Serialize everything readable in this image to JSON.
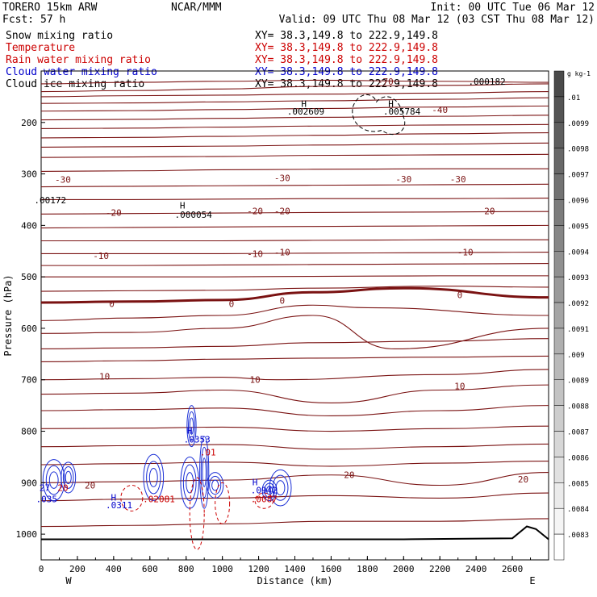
{
  "header": {
    "model": "TORERO  15km ARW",
    "center": "NCAR/MMM",
    "init": "Init: 00 UTC Tue 06 Mar 12",
    "fcst_label": "Fcst:",
    "fcst_value": "57 h",
    "valid": "Valid: 09 UTC Thu 08 Mar 12 (03 CST Thu 08 Mar 12)"
  },
  "fields": [
    {
      "name": "Snow mixing ratio",
      "xy": "XY=  38.3,149.8 to 222.9,149.8",
      "color": "#000000",
      "xycolor": "#000000"
    },
    {
      "name": "Temperature",
      "xy": "XY=  38.3,149.8 to 222.9,149.8",
      "color": "#cc0000",
      "xycolor": "#cc0000"
    },
    {
      "name": "Rain water mixing ratio",
      "xy": "XY=  38.3,149.8 to 222.9,149.8",
      "color": "#cc0000",
      "xycolor": "#cc0000"
    },
    {
      "name": "Cloud water mixing ratio",
      "xy": "XY=  38.3,149.8 to 222.9,149.8",
      "color": "#0000cc",
      "xycolor": "#0000cc"
    },
    {
      "name": "Cloud ice mixing ratio",
      "xy": "XY=  38.3,149.8 to 222.9,149.8",
      "color": "#000000",
      "xycolor": "#000000"
    }
  ],
  "chart_data": {
    "type": "contour",
    "xlabel": "Distance (km)",
    "ylabel": "Pressure (hPa)",
    "xlim": [
      0,
      2800
    ],
    "ylim": [
      1050,
      100
    ],
    "xticks": [
      0,
      200,
      400,
      600,
      800,
      1000,
      1200,
      1400,
      1600,
      1800,
      2000,
      2200,
      2400,
      2600
    ],
    "yticks": [
      200,
      300,
      400,
      500,
      600,
      700,
      800,
      900,
      1000
    ],
    "x_end_labels": {
      "left": "W",
      "right": "E"
    },
    "colorbar": {
      "unit": "g kg-1",
      "labels": [
        ".01",
        ".0099",
        ".0098",
        ".0097",
        ".0096",
        ".0095",
        ".0094",
        ".0093",
        ".0092",
        ".0091",
        ".009",
        ".0089",
        ".0088",
        ".0087",
        ".0086",
        ".0085",
        ".0084",
        ".0083"
      ],
      "top_color": "#4a4a4a",
      "bottom_color": "#ffffff"
    },
    "temperature_isotherms": [
      {
        "p": [
          125,
          122,
          120,
          118,
          120,
          122
        ],
        "x": [
          0,
          500,
          1000,
          1500,
          2200,
          2800
        ]
      },
      {
        "p": [
          140,
          138,
          135,
          130,
          128,
          125
        ],
        "x": [
          0,
          500,
          1000,
          1500,
          2200,
          2800
        ]
      },
      {
        "p": [
          150,
          148,
          147,
          145,
          143,
          140
        ],
        "x": [
          0,
          500,
          1000,
          1500,
          2200,
          2800
        ]
      },
      {
        "p": [
          163,
          162,
          160,
          158,
          155,
          152
        ],
        "x": [
          0,
          500,
          1000,
          1500,
          2200,
          2800
        ]
      },
      {
        "p": [
          178,
          177,
          175,
          173,
          170,
          168
        ],
        "x": [
          0,
          500,
          1000,
          1500,
          2200,
          2800
        ]
      },
      {
        "p": [
          195,
          194,
          192,
          190,
          188,
          186
        ],
        "x": [
          0,
          500,
          1000,
          1500,
          2200,
          2800
        ]
      },
      {
        "p": [
          212,
          211,
          209,
          207,
          205,
          204
        ],
        "x": [
          0,
          500,
          1000,
          1500,
          2200,
          2800
        ]
      },
      {
        "p": [
          230,
          229,
          227,
          225,
          222,
          220
        ],
        "x": [
          0,
          500,
          1000,
          1500,
          2200,
          2800
        ]
      },
      {
        "p": [
          248,
          247,
          246,
          244,
          242,
          240
        ],
        "x": [
          0,
          500,
          1000,
          1500,
          2200,
          2800
        ]
      },
      {
        "p": [
          268,
          267,
          266,
          264,
          263,
          262
        ],
        "x": [
          0,
          500,
          1000,
          1500,
          2200,
          2800
        ]
      },
      {
        "p": [
          295,
          294,
          292,
          291,
          290,
          290
        ],
        "x": [
          0,
          500,
          1000,
          1500,
          2200,
          2800
        ]
      },
      {
        "p": [
          325,
          324,
          323,
          322,
          321,
          320
        ],
        "x": [
          0,
          500,
          1000,
          1500,
          2200,
          2800
        ]
      },
      {
        "p": [
          350,
          350,
          349,
          348,
          348,
          347
        ],
        "x": [
          0,
          500,
          1000,
          1500,
          2200,
          2800
        ]
      },
      {
        "p": [
          378,
          377,
          376,
          375,
          374,
          373
        ],
        "x": [
          0,
          500,
          1000,
          1500,
          2200,
          2800
        ]
      },
      {
        "p": [
          405,
          404,
          403,
          402,
          401,
          400
        ],
        "x": [
          0,
          500,
          1000,
          1500,
          2200,
          2800
        ]
      },
      {
        "p": [
          430,
          430,
          430,
          429,
          428,
          428
        ],
        "x": [
          0,
          500,
          1000,
          1500,
          2200,
          2800
        ]
      },
      {
        "p": [
          455,
          455,
          455,
          454,
          453,
          452
        ],
        "x": [
          0,
          500,
          1000,
          1500,
          2200,
          2800
        ]
      },
      {
        "p": [
          478,
          478,
          477,
          476,
          475,
          474
        ],
        "x": [
          0,
          500,
          1000,
          1500,
          2200,
          2800
        ]
      },
      {
        "p": [
          500,
          500,
          500,
          499,
          498,
          498
        ],
        "x": [
          0,
          500,
          1000,
          1500,
          2200,
          2800
        ]
      },
      {
        "p": [
          528,
          527,
          526,
          522,
          518,
          520
        ],
        "x": [
          0,
          500,
          1000,
          1500,
          2200,
          2800
        ]
      },
      {
        "p": [
          550,
          548,
          545,
          530,
          522,
          540
        ],
        "x": [
          0,
          500,
          1000,
          1500,
          2000,
          2800
        ],
        "bold": true
      },
      {
        "p": [
          585,
          580,
          575,
          555,
          560,
          575
        ],
        "x": [
          0,
          500,
          1000,
          1500,
          1800,
          2800
        ]
      },
      {
        "p": [
          610,
          608,
          600,
          575,
          640,
          600
        ],
        "x": [
          0,
          500,
          1000,
          1500,
          1950,
          2800
        ]
      },
      {
        "p": [
          640,
          638,
          635,
          628,
          625,
          620
        ],
        "x": [
          0,
          500,
          1000,
          1500,
          2200,
          2800
        ]
      },
      {
        "p": [
          665,
          663,
          660,
          658,
          656,
          654
        ],
        "x": [
          0,
          500,
          1000,
          1500,
          2200,
          2800
        ]
      },
      {
        "p": [
          700,
          698,
          695,
          700,
          690,
          680
        ],
        "x": [
          0,
          500,
          1000,
          1300,
          2200,
          2800
        ]
      },
      {
        "p": [
          728,
          726,
          720,
          745,
          720,
          710
        ],
        "x": [
          0,
          500,
          1000,
          1600,
          2200,
          2800
        ]
      },
      {
        "p": [
          760,
          758,
          755,
          770,
          760,
          750
        ],
        "x": [
          0,
          500,
          1000,
          1600,
          2200,
          2800
        ]
      },
      {
        "p": [
          795,
          794,
          792,
          800,
          795,
          790
        ],
        "x": [
          0,
          500,
          1000,
          1600,
          2200,
          2800
        ]
      },
      {
        "p": [
          830,
          828,
          826,
          835,
          830,
          825
        ],
        "x": [
          0,
          500,
          1000,
          1600,
          2200,
          2800
        ]
      },
      {
        "p": [
          865,
          863,
          860,
          868,
          862,
          858
        ],
        "x": [
          0,
          500,
          1000,
          1600,
          2200,
          2800
        ]
      },
      {
        "p": [
          900,
          898,
          895,
          885,
          905,
          880
        ],
        "x": [
          0,
          500,
          1000,
          1600,
          2200,
          2800
        ]
      },
      {
        "p": [
          935,
          932,
          930,
          925,
          930,
          920
        ],
        "x": [
          0,
          500,
          1000,
          1600,
          2200,
          2800
        ]
      },
      {
        "p": [
          985,
          983,
          980,
          975,
          975,
          970
        ],
        "x": [
          0,
          500,
          1000,
          1600,
          2200,
          2800
        ]
      }
    ],
    "temperature_labels": [
      {
        "text": "-70",
        "x": 1900,
        "p": 120
      },
      {
        "text": "-40",
        "x": 2200,
        "p": 175
      },
      {
        "text": "-30",
        "x": 120,
        "p": 311
      },
      {
        "text": "-30",
        "x": 1330,
        "p": 308
      },
      {
        "text": "-30",
        "x": 2000,
        "p": 310
      },
      {
        "text": "-30",
        "x": 2300,
        "p": 310
      },
      {
        "text": "-20",
        "x": 400,
        "p": 375
      },
      {
        "text": "-20",
        "x": 1180,
        "p": 372
      },
      {
        "text": "-20",
        "x": 1330,
        "p": 372
      },
      {
        "text": "-20",
        "x": 2460,
        "p": 372
      },
      {
        "text": "-10",
        "x": 330,
        "p": 459
      },
      {
        "text": "-10",
        "x": 1180,
        "p": 455
      },
      {
        "text": "-10",
        "x": 1330,
        "p": 452
      },
      {
        "text": "-10",
        "x": 2340,
        "p": 452
      },
      {
        "text": "0",
        "x": 390,
        "p": 552
      },
      {
        "text": "0",
        "x": 1050,
        "p": 552
      },
      {
        "text": "0",
        "x": 1330,
        "p": 546
      },
      {
        "text": "0",
        "x": 2310,
        "p": 535
      },
      {
        "text": "10",
        "x": 350,
        "p": 693
      },
      {
        "text": "10",
        "x": 1180,
        "p": 700
      },
      {
        "text": "10",
        "x": 2310,
        "p": 712
      },
      {
        "text": "20",
        "x": 270,
        "p": 905
      },
      {
        "text": "20",
        "x": 1700,
        "p": 885
      },
      {
        "text": "20",
        "x": 2660,
        "p": 893
      }
    ],
    "annotations": [
      {
        "text": "H",
        "x": 1450,
        "p": 170,
        "color": "#000000"
      },
      {
        "text": ".002609",
        "x": 1460,
        "p": 185,
        "color": "#000000"
      },
      {
        "text": "H",
        "x": 1930,
        "p": 170,
        "color": "#000000"
      },
      {
        "text": ".005784",
        "x": 1990,
        "p": 185,
        "color": "#000000"
      },
      {
        "text": ".000182",
        "x": 2460,
        "p": 127,
        "color": "#000000"
      },
      {
        "text": "H",
        "x": 780,
        "p": 367,
        "color": "#000000"
      },
      {
        "text": ".000054",
        "x": 840,
        "p": 385,
        "color": "#000000"
      },
      {
        "text": ".00172",
        "x": 50,
        "p": 357,
        "color": "#000000"
      },
      {
        "text": "H",
        "x": 820,
        "p": 805,
        "color": "#0000cc"
      },
      {
        "text": ".0353",
        "x": 860,
        "p": 822,
        "color": "#0000cc"
      },
      {
        "text": ".01",
        "x": 920,
        "p": 847,
        "color": "#cc0000"
      },
      {
        "text": "H",
        "x": 400,
        "p": 935,
        "color": "#0000cc"
      },
      {
        "text": ".0311",
        "x": 430,
        "p": 950,
        "color": "#0000cc"
      },
      {
        "text": "H",
        "x": 1180,
        "p": 905,
        "color": "#0000cc"
      },
      {
        "text": ".0942",
        "x": 1230,
        "p": 921,
        "color": "#0000cc"
      },
      {
        "text": ".0087",
        "x": 1230,
        "p": 938,
        "color": "#cc0000"
      },
      {
        "text": ".02081",
        "x": 650,
        "p": 938,
        "color": "#cc0000"
      },
      {
        "text": ".035",
        "x": 30,
        "p": 938,
        "color": "#0000cc"
      },
      {
        "text": "27",
        "x": 20,
        "p": 916,
        "color": "#0000cc"
      },
      {
        "text": "20",
        "x": 120,
        "p": 916,
        "color": "#cc0000"
      }
    ]
  }
}
